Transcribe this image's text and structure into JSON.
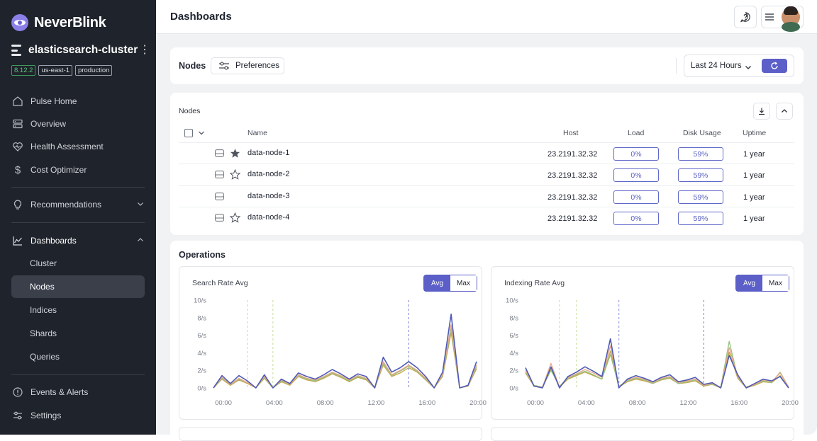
{
  "brand": {
    "name": "NeverBlink"
  },
  "cluster": {
    "name": "elasticsearch-cluster",
    "tags": [
      "8.12.2",
      "us-east-1",
      "production"
    ]
  },
  "nav": {
    "pulse_home": "Pulse Home",
    "overview": "Overview",
    "health_assessment": "Health Assessment",
    "cost_optimizer": "Cost Optimizer",
    "recommendations": "Recommendations",
    "dashboards": "Dashboards",
    "dashboards_sub": [
      "Cluster",
      "Nodes",
      "Indices",
      "Shards",
      "Queries"
    ],
    "active_sub": "Nodes",
    "events_alerts": "Events & Alerts",
    "settings": "Settings"
  },
  "header": {
    "title": "Dashboards"
  },
  "toolbar": {
    "title": "Nodes",
    "preferences": "Preferences",
    "time_range": "Last 24 Hours"
  },
  "nodes_table": {
    "title": "Nodes",
    "columns": {
      "name": "Name",
      "host": "Host",
      "load": "Load",
      "disk": "Disk Usage",
      "uptime": "Uptime"
    },
    "rows": [
      {
        "name": "data-node-1",
        "favorite": "filled",
        "host": "23.2191.32.32",
        "load": "0%",
        "disk": "59%",
        "uptime": "1 year"
      },
      {
        "name": "data-node-2",
        "favorite": "outline",
        "host": "23.2191.32.32",
        "load": "0%",
        "disk": "59%",
        "uptime": "1 year"
      },
      {
        "name": "data-node-3",
        "favorite": "none",
        "host": "23.2191.32.32",
        "load": "0%",
        "disk": "59%",
        "uptime": "1 year"
      },
      {
        "name": "data-node-4",
        "favorite": "outline",
        "host": "23.2191.32.32",
        "load": "0%",
        "disk": "59%",
        "uptime": "1 year"
      }
    ]
  },
  "operations": {
    "title": "Operations",
    "avg_label": "Avg",
    "max_label": "Max"
  },
  "colors": {
    "accent": "#5b5fc7",
    "sidebar": "#1f232b",
    "series": [
      "#4f5bb5",
      "#e8a68a",
      "#93c47d",
      "#c4a64a"
    ]
  },
  "chart_data": [
    {
      "type": "line",
      "title": "Search Rate Avg",
      "ylabel": "",
      "yticks": [
        "0/s",
        "2/s",
        "4/s",
        "6/s",
        "8/s",
        "10/s"
      ],
      "xticks": [
        "00:00",
        "04:00",
        "08:00",
        "12:00",
        "16:00",
        "20:00"
      ],
      "ylim": [
        0,
        10
      ],
      "x": [
        "00:00",
        "00:40",
        "01:20",
        "02:00",
        "02:40",
        "03:20",
        "04:00",
        "04:40",
        "05:20",
        "06:00",
        "06:40",
        "07:20",
        "08:00",
        "08:40",
        "09:20",
        "10:00",
        "10:40",
        "11:20",
        "12:00",
        "12:40",
        "13:20",
        "14:00",
        "14:40",
        "15:20",
        "16:00",
        "16:40",
        "17:20",
        "18:00",
        "18:40",
        "19:20",
        "20:00",
        "20:40"
      ],
      "markers": [
        "02:40",
        "04:40",
        "15:20"
      ],
      "series": [
        {
          "values": [
            0,
            1.4,
            0.5,
            1.4,
            0.8,
            0,
            1.5,
            0,
            1,
            0.5,
            1.7,
            1.3,
            1,
            1.5,
            2.1,
            1.6,
            1,
            1.6,
            1.3,
            0,
            3.5,
            1.8,
            2.3,
            3,
            2.3,
            1.3,
            0,
            1.8,
            8.4,
            0,
            0.3,
            3
          ]
        },
        {
          "values": [
            0,
            1.2,
            0.4,
            1.1,
            0.6,
            0,
            1.3,
            0,
            0.9,
            0.4,
            1.5,
            1.1,
            0.9,
            1.3,
            1.8,
            1.4,
            0.9,
            1.4,
            1.1,
            0,
            3,
            1.5,
            2,
            2.6,
            2,
            1.1,
            0,
            1.5,
            7.2,
            0,
            0.2,
            2.6
          ]
        },
        {
          "values": [
            0,
            1.1,
            0.4,
            1,
            0.6,
            0,
            1.2,
            0,
            0.8,
            0.4,
            1.4,
            1,
            0.8,
            1.2,
            1.7,
            1.3,
            0.8,
            1.3,
            1,
            0,
            2.8,
            1.4,
            1.9,
            2.5,
            1.9,
            1,
            0,
            1.4,
            6.8,
            0,
            0.2,
            2.4
          ]
        },
        {
          "values": [
            0,
            1,
            0.3,
            0.9,
            0.5,
            0,
            1.1,
            0,
            0.7,
            0.3,
            1.3,
            0.9,
            0.7,
            1.1,
            1.6,
            1.2,
            0.7,
            1.2,
            0.9,
            0,
            2.6,
            1.3,
            1.7,
            2.3,
            1.8,
            0.9,
            0,
            1.3,
            6.3,
            0,
            0.2,
            2.2
          ]
        }
      ]
    },
    {
      "type": "line",
      "title": "Indexing Rate Avg",
      "ylabel": "",
      "yticks": [
        "0/s",
        "2/s",
        "4/s",
        "6/s",
        "8/s",
        "10/s"
      ],
      "xticks": [
        "00:00",
        "04:00",
        "08:00",
        "12:00",
        "16:00",
        "20:00"
      ],
      "ylim": [
        0,
        10
      ],
      "x": [
        "00:00",
        "00:40",
        "01:20",
        "02:00",
        "02:40",
        "03:20",
        "04:00",
        "04:40",
        "05:20",
        "06:00",
        "06:40",
        "07:20",
        "08:00",
        "08:40",
        "09:20",
        "10:00",
        "10:40",
        "11:20",
        "12:00",
        "12:40",
        "13:20",
        "14:00",
        "14:40",
        "15:20",
        "16:00",
        "16:40",
        "17:20",
        "18:00",
        "18:40",
        "19:20",
        "20:00",
        "20:40"
      ],
      "markers": [
        "02:40",
        "04:00",
        "07:20",
        "14:00"
      ],
      "series": [
        {
          "values": [
            2.3,
            0.2,
            0,
            2.4,
            0,
            1.3,
            1.8,
            2.4,
            1.9,
            1.3,
            5.6,
            0,
            1,
            1.4,
            1.1,
            0.7,
            1.2,
            1.5,
            0.7,
            0.9,
            1.2,
            0.4,
            0.6,
            0,
            3.7,
            1.5,
            0,
            0.5,
            1,
            0.8,
            1.3,
            0
          ]
        },
        {
          "values": [
            2,
            0.2,
            0.1,
            2.8,
            0.1,
            1.2,
            1.6,
            2.1,
            1.7,
            1.2,
            4.8,
            0.1,
            0.9,
            1.2,
            1,
            0.6,
            1.1,
            1.3,
            0.6,
            0.8,
            1,
            0.3,
            0.5,
            0,
            4.6,
            1.3,
            0,
            0.4,
            0.9,
            0.7,
            1.7,
            0.1
          ]
        },
        {
          "values": [
            1.8,
            0.3,
            0.1,
            2,
            0.2,
            1.1,
            1.5,
            1.9,
            1.5,
            1,
            3.8,
            0.2,
            0.8,
            1.1,
            0.9,
            0.5,
            1,
            1.2,
            0.5,
            0.7,
            0.9,
            0.3,
            0.4,
            0.1,
            5.3,
            1.2,
            0.1,
            0.4,
            0.8,
            0.6,
            1.8,
            0.1
          ]
        },
        {
          "values": [
            1.7,
            0.2,
            0.1,
            2.2,
            0.1,
            1,
            1.4,
            1.8,
            1.4,
            1,
            4.2,
            0.1,
            0.7,
            1,
            0.8,
            0.5,
            0.9,
            1.1,
            0.5,
            0.6,
            0.8,
            0.2,
            0.4,
            0,
            4.1,
            1.1,
            0,
            0.3,
            0.7,
            0.6,
            1.4,
            0
          ]
        }
      ]
    }
  ]
}
